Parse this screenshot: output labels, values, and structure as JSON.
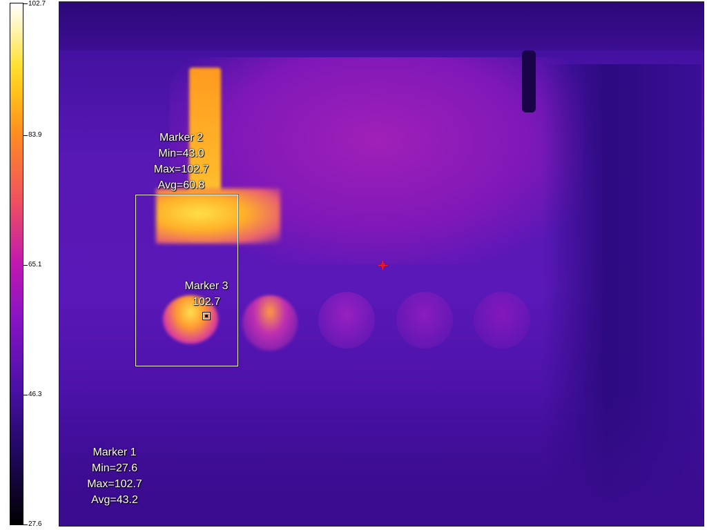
{
  "color_scale": {
    "ticks": [
      {
        "label": "102.7",
        "value": 102.7
      },
      {
        "label": "83.9",
        "value": 83.9
      },
      {
        "label": "65.1",
        "value": 65.1
      },
      {
        "label": "46.3",
        "value": 46.3
      },
      {
        "label": "27.6",
        "value": 27.6
      }
    ],
    "max": 102.7,
    "min": 27.6
  },
  "markers": {
    "marker1": {
      "name": "Marker 1",
      "min": "Min=27.6",
      "max": "Max=102.7",
      "avg": "Avg=43.2"
    },
    "marker2": {
      "name": "Marker 2",
      "min": "Min=43.0",
      "max": "Max=102.7",
      "avg": "Avg=60.8"
    },
    "marker3": {
      "name": "Marker 3",
      "value": "102.7"
    }
  },
  "colors": {
    "background_hot": "#ffb020",
    "background_base": "#4a14a8",
    "crosshair": "#ff2020"
  }
}
